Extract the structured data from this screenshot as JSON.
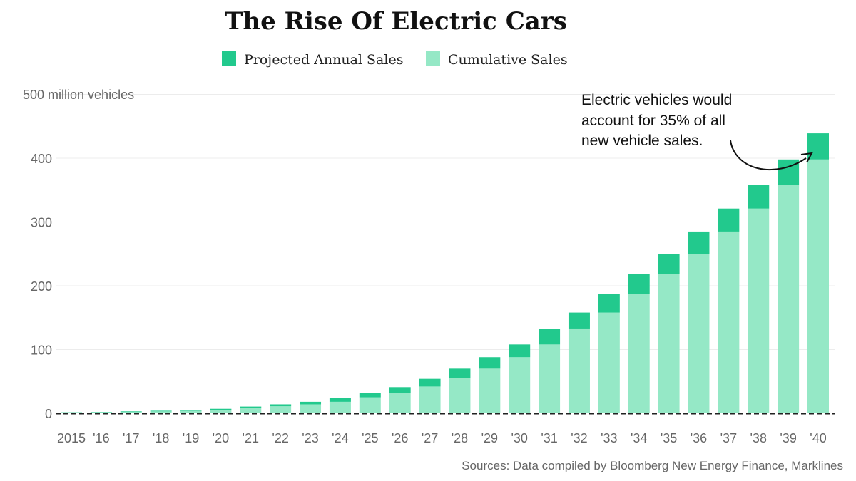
{
  "chart_data": {
    "type": "bar",
    "stacked": true,
    "title": "The Rise Of Electric Cars",
    "ylabel_top": "500 million vehicles",
    "ylim": [
      0,
      500
    ],
    "yticks": [
      0,
      100,
      200,
      300,
      400
    ],
    "grid": true,
    "legend_position": "top",
    "categories": [
      "2015",
      "'16",
      "'17",
      "'18",
      "'19",
      "'20",
      "'21",
      "'22",
      "'23",
      "'24",
      "'25",
      "'26",
      "'27",
      "'28",
      "'29",
      "'30",
      "'31",
      "'32",
      "'33",
      "'34",
      "'35",
      "'36",
      "'37",
      "'38",
      "'39",
      "'40"
    ],
    "series": [
      {
        "name": "Cumulative Sales",
        "color": "#95e8c6",
        "values": [
          1,
          1.5,
          2,
          3,
          4,
          5,
          8,
          11,
          14,
          18,
          25,
          32,
          42,
          55,
          70,
          88,
          108,
          133,
          158,
          187,
          218,
          250,
          285,
          321,
          358,
          398
        ]
      },
      {
        "name": "Projected Annual Sales",
        "color": "#22c98d",
        "values": [
          0.5,
          0.5,
          1,
          1,
          1.5,
          2,
          2.5,
          3,
          4,
          6,
          7,
          9,
          12,
          15,
          18,
          20,
          24,
          25,
          29,
          31,
          32,
          35,
          36,
          37,
          40,
          41
        ]
      }
    ],
    "annotation": [
      "Electric vehicles would",
      "account for 35% of all",
      "new vehicle sales."
    ],
    "source": "Sources: Data compiled by Bloomberg New Energy Finance, Marklines"
  }
}
